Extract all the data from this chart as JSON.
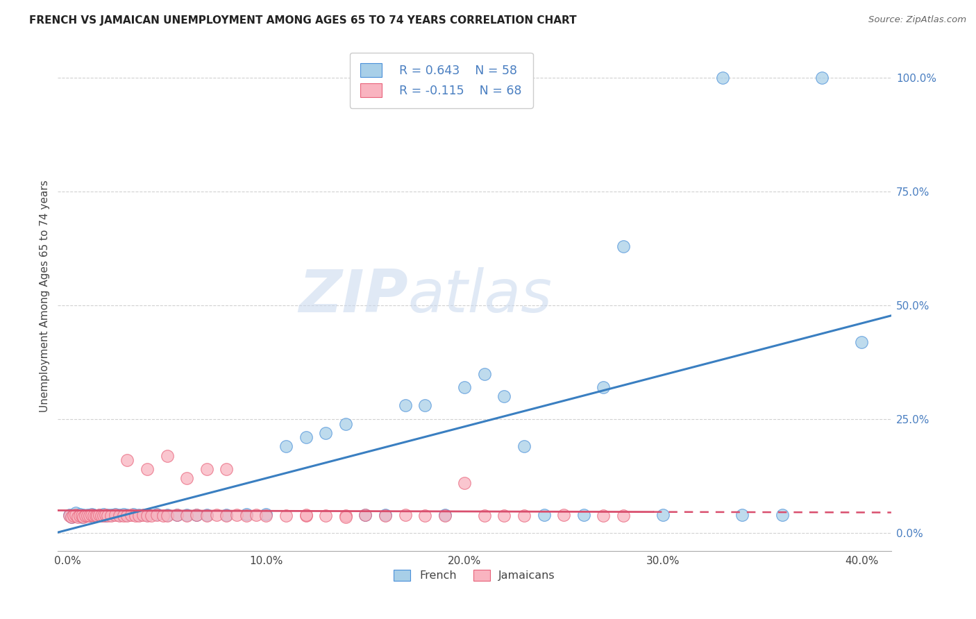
{
  "title": "FRENCH VS JAMAICAN UNEMPLOYMENT AMONG AGES 65 TO 74 YEARS CORRELATION CHART",
  "source": "Source: ZipAtlas.com",
  "ylabel": "Unemployment Among Ages 65 to 74 years",
  "xlabel_ticks": [
    "0.0%",
    "10.0%",
    "20.0%",
    "30.0%",
    "40.0%"
  ],
  "xlabel_vals": [
    0.0,
    0.1,
    0.2,
    0.3,
    0.4
  ],
  "ylabel_ticks": [
    "0.0%",
    "25.0%",
    "50.0%",
    "75.0%",
    "100.0%"
  ],
  "ylabel_vals": [
    0.0,
    0.25,
    0.5,
    0.75,
    1.0
  ],
  "xlim": [
    -0.005,
    0.415
  ],
  "ylim": [
    -0.04,
    1.08
  ],
  "french_color": "#a8cfe8",
  "jamaican_color": "#f9b4c0",
  "french_edge_color": "#4a90d9",
  "jamaican_edge_color": "#e8627a",
  "trend_french_color": "#3a7fc1",
  "trend_jamaican_color": "#d94f6e",
  "axis_label_color": "#4a7fc1",
  "legend_french_label": "French",
  "legend_jamaican_label": "Jamaicans",
  "french_R": "R = 0.643",
  "french_N": "N = 58",
  "jamaican_R": "R = -0.115",
  "jamaican_N": "N = 68",
  "watermark_zip": "ZIP",
  "watermark_atlas": "atlas",
  "french_x": [
    0.001,
    0.002,
    0.003,
    0.004,
    0.005,
    0.006,
    0.007,
    0.008,
    0.009,
    0.01,
    0.011,
    0.012,
    0.013,
    0.015,
    0.016,
    0.018,
    0.019,
    0.02,
    0.022,
    0.024,
    0.026,
    0.028,
    0.03,
    0.033,
    0.036,
    0.04,
    0.045,
    0.05,
    0.055,
    0.06,
    0.065,
    0.07,
    0.08,
    0.09,
    0.1,
    0.11,
    0.12,
    0.13,
    0.14,
    0.15,
    0.16,
    0.17,
    0.18,
    0.19,
    0.2,
    0.21,
    0.22,
    0.23,
    0.24,
    0.26,
    0.27,
    0.28,
    0.3,
    0.33,
    0.34,
    0.36,
    0.38,
    0.4
  ],
  "french_y": [
    0.04,
    0.035,
    0.04,
    0.045,
    0.038,
    0.042,
    0.035,
    0.04,
    0.038,
    0.04,
    0.038,
    0.042,
    0.04,
    0.038,
    0.04,
    0.042,
    0.038,
    0.04,
    0.04,
    0.042,
    0.04,
    0.042,
    0.04,
    0.042,
    0.04,
    0.04,
    0.042,
    0.04,
    0.04,
    0.04,
    0.04,
    0.04,
    0.04,
    0.042,
    0.042,
    0.19,
    0.21,
    0.22,
    0.24,
    0.04,
    0.04,
    0.28,
    0.28,
    0.04,
    0.32,
    0.35,
    0.3,
    0.19,
    0.04,
    0.04,
    0.32,
    0.63,
    0.04,
    1.0,
    0.04,
    0.04,
    1.0,
    0.42
  ],
  "jamaican_x": [
    0.001,
    0.002,
    0.003,
    0.004,
    0.005,
    0.006,
    0.007,
    0.008,
    0.009,
    0.01,
    0.011,
    0.012,
    0.013,
    0.014,
    0.015,
    0.016,
    0.017,
    0.018,
    0.019,
    0.02,
    0.022,
    0.024,
    0.026,
    0.028,
    0.03,
    0.032,
    0.034,
    0.036,
    0.038,
    0.04,
    0.042,
    0.045,
    0.048,
    0.05,
    0.055,
    0.06,
    0.065,
    0.07,
    0.075,
    0.08,
    0.085,
    0.09,
    0.095,
    0.1,
    0.11,
    0.12,
    0.13,
    0.14,
    0.15,
    0.16,
    0.17,
    0.18,
    0.19,
    0.2,
    0.21,
    0.22,
    0.23,
    0.25,
    0.27,
    0.28,
    0.03,
    0.04,
    0.05,
    0.06,
    0.07,
    0.08,
    0.12,
    0.14
  ],
  "jamaican_y": [
    0.038,
    0.035,
    0.038,
    0.04,
    0.035,
    0.038,
    0.038,
    0.035,
    0.038,
    0.038,
    0.038,
    0.04,
    0.038,
    0.038,
    0.038,
    0.04,
    0.038,
    0.038,
    0.04,
    0.038,
    0.038,
    0.04,
    0.038,
    0.038,
    0.038,
    0.04,
    0.038,
    0.038,
    0.04,
    0.038,
    0.038,
    0.04,
    0.038,
    0.038,
    0.04,
    0.038,
    0.04,
    0.038,
    0.04,
    0.038,
    0.04,
    0.038,
    0.04,
    0.038,
    0.038,
    0.038,
    0.038,
    0.038,
    0.04,
    0.038,
    0.04,
    0.038,
    0.038,
    0.11,
    0.038,
    0.038,
    0.038,
    0.04,
    0.038,
    0.038,
    0.16,
    0.14,
    0.17,
    0.12,
    0.14,
    0.14,
    0.04,
    0.035
  ]
}
